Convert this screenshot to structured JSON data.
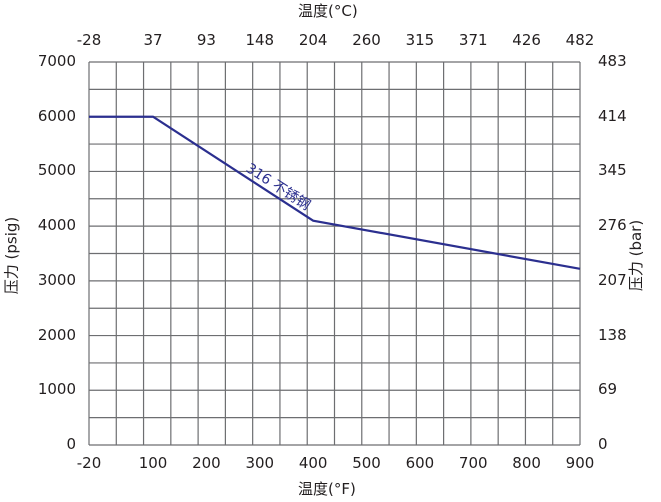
{
  "chart_data": {
    "type": "line",
    "title": "",
    "xlabel": "温度(°F)",
    "x2label": "温度(°C)",
    "ylabel": "压力 (psig)",
    "y2label": "压力 (bar)",
    "xlim": [
      -20,
      900
    ],
    "ylim": [
      0,
      7000
    ],
    "x_ticks": [
      "-20",
      "100",
      "200",
      "300",
      "400",
      "500",
      "600",
      "700",
      "800",
      "900"
    ],
    "x2_ticks": [
      "-28",
      "37",
      "93",
      "148",
      "204",
      "260",
      "315",
      "371",
      "426",
      "482"
    ],
    "y_ticks": [
      "0",
      "1000",
      "2000",
      "3000",
      "4000",
      "5000",
      "6000",
      "7000"
    ],
    "y2_ticks": [
      "0",
      "69",
      "138",
      "207",
      "276",
      "345",
      "414",
      "483"
    ],
    "grid": true,
    "series": [
      {
        "name": "316 不锈钢",
        "color": "#2b2f8f",
        "x": [
          -20,
          100,
          400,
          900
        ],
        "y": [
          6000,
          6000,
          4100,
          3220
        ]
      }
    ],
    "annotations": [
      {
        "text": "316 不锈钢",
        "x": 330,
        "y": 4650
      }
    ]
  }
}
